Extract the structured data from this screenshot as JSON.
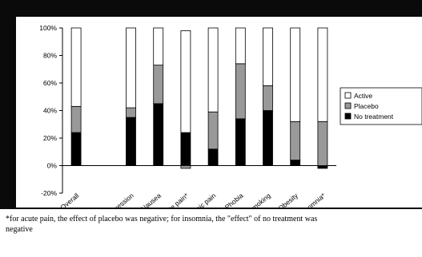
{
  "chart_data": {
    "type": "bar",
    "stacked": true,
    "categories": [
      "Overall",
      "",
      "Depression",
      "Nausea",
      "Acute pain*",
      "Chronic pain",
      "Phobia",
      "Smoking",
      "Obesity",
      "Insomnia*"
    ],
    "series": [
      {
        "name": "No treatment",
        "color": "#000000",
        "values": [
          24,
          null,
          35,
          45,
          24,
          12,
          34,
          40,
          4,
          -2
        ]
      },
      {
        "name": "Placebo",
        "color": "#999999",
        "values": [
          19,
          null,
          7,
          28,
          -2,
          27,
          40,
          18,
          28,
          32
        ]
      },
      {
        "name": "Active",
        "color": "#ffffff",
        "values": [
          57,
          null,
          58,
          27,
          74,
          61,
          26,
          42,
          68,
          68
        ]
      }
    ],
    "ylim": [
      -20,
      100
    ],
    "yticks": [
      "-20%",
      "0%",
      "20%",
      "40%",
      "60%",
      "80%",
      "100%"
    ],
    "legend_position": "right",
    "grid": false
  },
  "footnote": {
    "line1": "*for acute pain, the effect of placebo was negative; for insomnia, the \"effect\" of no treatment was",
    "line2": "negative"
  }
}
